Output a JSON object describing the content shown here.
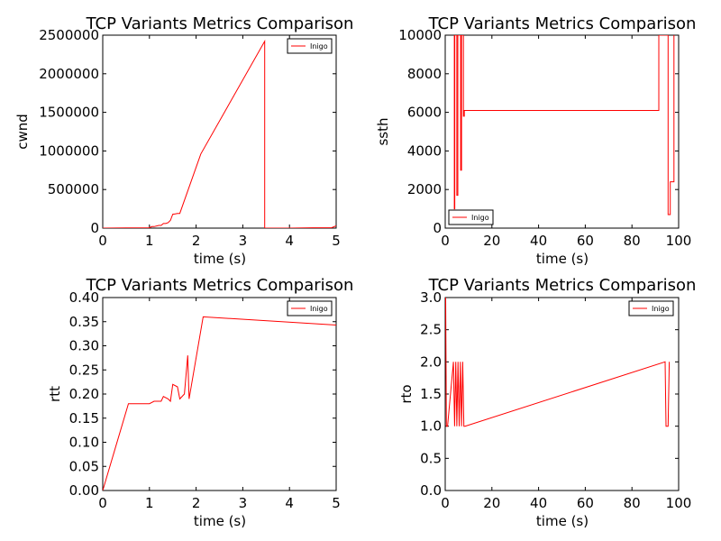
{
  "chart_data": [
    {
      "type": "line",
      "title": "TCP Variants Metrics Comparison",
      "xlabel": "time (s)",
      "ylabel": "cwnd",
      "xlim": [
        0,
        5
      ],
      "ylim": [
        0,
        2500000
      ],
      "xticks": [
        0,
        1,
        2,
        3,
        4,
        5
      ],
      "xtick_labels": [
        "0",
        "1",
        "2",
        "3",
        "4",
        "5"
      ],
      "yticks": [
        0,
        500000,
        1000000,
        1500000,
        2000000,
        2500000
      ],
      "ytick_labels": [
        "0",
        "500000",
        "1000000",
        "1500000",
        "2000000",
        "2500000"
      ],
      "legend_position": "top-right",
      "grid": false,
      "series": [
        {
          "name": "Inigo",
          "color": "#ff0000",
          "x": [
            0,
            0.5,
            1.0,
            1.05,
            1.1,
            1.2,
            1.25,
            1.3,
            1.35,
            1.4,
            1.45,
            1.5,
            1.55,
            1.6,
            1.65,
            2.1,
            3.47,
            3.47,
            4.0,
            4.5,
            4.9,
            5.0
          ],
          "y": [
            0,
            2000,
            5000,
            20000,
            20000,
            35000,
            35000,
            60000,
            60000,
            70000,
            100000,
            180000,
            185000,
            190000,
            190000,
            960000,
            2420000,
            0,
            0,
            5000,
            5000,
            30000
          ]
        }
      ]
    },
    {
      "type": "line",
      "title": "TCP Variants Metrics Comparison",
      "xlabel": "time (s)",
      "ylabel": "ssth",
      "xlim": [
        0,
        100
      ],
      "ylim": [
        0,
        10000
      ],
      "xticks": [
        0,
        20,
        40,
        60,
        80,
        100
      ],
      "xtick_labels": [
        "0",
        "20",
        "40",
        "60",
        "80",
        "100"
      ],
      "yticks": [
        0,
        2000,
        4000,
        6000,
        8000,
        10000
      ],
      "ytick_labels": [
        "0",
        "2000",
        "4000",
        "6000",
        "8000",
        "10000"
      ],
      "legend_position": "bottom-left",
      "grid": false,
      "series": [
        {
          "name": "Inigo",
          "color": "#ff0000",
          "x": [
            3.9,
            3.9,
            4.1,
            4.1,
            5.0,
            5.0,
            5.4,
            5.4,
            6.6,
            6.6,
            7.0,
            7.0,
            7.8,
            7.8,
            8.2,
            8.2,
            91.5,
            91.5,
            95.5,
            95.5,
            96.4,
            96.4,
            98.0,
            98.0
          ],
          "y": [
            10000,
            1000,
            1000,
            10000,
            10000,
            1700,
            1700,
            10000,
            10000,
            3000,
            3000,
            10000,
            10000,
            5800,
            5800,
            6100,
            6100,
            10000,
            10000,
            700,
            700,
            2400,
            2400,
            10000
          ]
        }
      ]
    },
    {
      "type": "line",
      "title": "TCP Variants Metrics Comparison",
      "xlabel": "time (s)",
      "ylabel": "rtt",
      "xlim": [
        0,
        5
      ],
      "ylim": [
        0,
        0.4
      ],
      "xticks": [
        0,
        1,
        2,
        3,
        4,
        5
      ],
      "xtick_labels": [
        "0",
        "1",
        "2",
        "3",
        "4",
        "5"
      ],
      "yticks": [
        0,
        0.05,
        0.1,
        0.15,
        0.2,
        0.25,
        0.3,
        0.35,
        0.4
      ],
      "ytick_labels": [
        "0.00",
        "0.05",
        "0.10",
        "0.15",
        "0.20",
        "0.25",
        "0.30",
        "0.35",
        "0.40"
      ],
      "legend_position": "top-right",
      "grid": false,
      "series": [
        {
          "name": "Inigo",
          "color": "#ff0000",
          "x": [
            0,
            0.55,
            0.9,
            1.0,
            1.1,
            1.25,
            1.3,
            1.4,
            1.45,
            1.5,
            1.6,
            1.65,
            1.75,
            1.82,
            1.85,
            2.15,
            5.0
          ],
          "y": [
            0,
            0.18,
            0.18,
            0.18,
            0.185,
            0.185,
            0.195,
            0.19,
            0.185,
            0.22,
            0.215,
            0.19,
            0.2,
            0.28,
            0.19,
            0.36,
            0.343
          ]
        }
      ]
    },
    {
      "type": "line",
      "title": "TCP Variants Metrics Comparison",
      "xlabel": "time (s)",
      "ylabel": "rto",
      "xlim": [
        0,
        100
      ],
      "ylim": [
        0,
        3.0
      ],
      "xticks": [
        0,
        20,
        40,
        60,
        80,
        100
      ],
      "xtick_labels": [
        "0",
        "20",
        "40",
        "60",
        "80",
        "100"
      ],
      "yticks": [
        0,
        0.5,
        1.0,
        1.5,
        2.0,
        2.5,
        3.0
      ],
      "ytick_labels": [
        "0.0",
        "0.5",
        "1.0",
        "1.5",
        "2.0",
        "2.5",
        "3.0"
      ],
      "legend_position": "top-right",
      "grid": false,
      "series": [
        {
          "name": "Inigo",
          "color": "#ff0000",
          "x": [
            0.2,
            0.5,
            1.0,
            3.5,
            4.0,
            4.5,
            5.0,
            5.5,
            6.0,
            6.5,
            7.0,
            7.5,
            8.0,
            8.5,
            94.2,
            94.6,
            95.5,
            96.0
          ],
          "y": [
            3.0,
            1.0,
            1.0,
            2.0,
            1.0,
            2.0,
            1.0,
            2.0,
            1.0,
            2.0,
            1.0,
            2.0,
            1.0,
            1.0,
            2.0,
            1.0,
            1.0,
            2.0
          ]
        }
      ]
    }
  ]
}
